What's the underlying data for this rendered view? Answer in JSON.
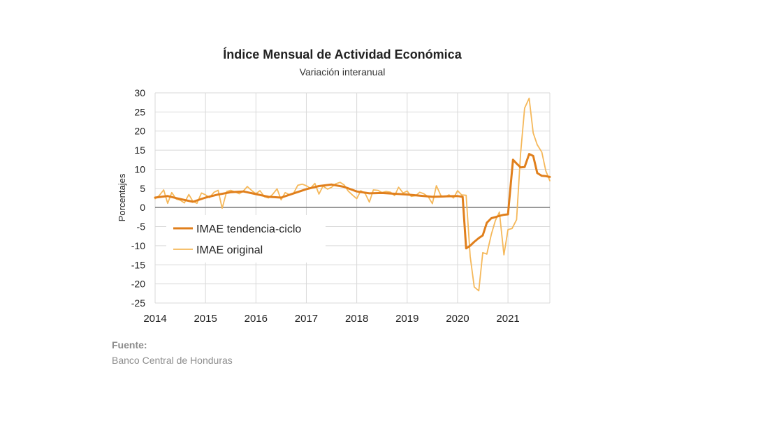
{
  "chart_data": {
    "type": "line",
    "title": "Índice Mensual de  Actividad Económica",
    "subtitle": "Variación interanual",
    "ylabel": "Porcentajes",
    "xlabel": "",
    "ylim": [
      -25,
      30
    ],
    "yticks": [
      30,
      25,
      20,
      15,
      10,
      5,
      0,
      -5,
      -10,
      -15,
      -20,
      -25
    ],
    "xlim": [
      2014,
      2021.83
    ],
    "xticks": [
      2014,
      2015,
      2016,
      2017,
      2018,
      2019,
      2020,
      2021
    ],
    "grid": true,
    "legend_position": "left",
    "colors": {
      "trend": "#e07f1c",
      "original": "#f5b85a",
      "zero": "#808080",
      "grid": "#d9d9d9"
    },
    "series": [
      {
        "name": "IMAE tendencia-ciclo",
        "x": [
          2014.0,
          2014.25,
          2014.5,
          2014.75,
          2015.0,
          2015.25,
          2015.5,
          2015.75,
          2016.0,
          2016.25,
          2016.5,
          2016.75,
          2017.0,
          2017.25,
          2017.5,
          2017.75,
          2018.0,
          2018.25,
          2018.5,
          2018.75,
          2019.0,
          2019.25,
          2019.5,
          2019.75,
          2020.0,
          2020.1,
          2020.17,
          2020.25,
          2020.33,
          2020.42,
          2020.5,
          2020.58,
          2020.67,
          2020.75,
          2020.83,
          2020.92,
          2021.0,
          2021.1,
          2021.17,
          2021.25,
          2021.33,
          2021.42,
          2021.5,
          2021.58,
          2021.67,
          2021.75,
          2021.83
        ],
        "values": [
          2.6,
          3.0,
          2.2,
          1.5,
          2.6,
          3.4,
          4.0,
          4.2,
          3.5,
          2.8,
          2.6,
          3.7,
          4.8,
          5.6,
          6.0,
          5.4,
          4.2,
          3.7,
          3.8,
          3.6,
          3.4,
          3.1,
          2.8,
          2.9,
          3.0,
          2.8,
          -10.7,
          -10.0,
          -9.0,
          -8.0,
          -7.3,
          -4.0,
          -2.8,
          -2.5,
          -2.2,
          -1.9,
          -1.8,
          12.5,
          11.5,
          10.5,
          10.6,
          14.0,
          13.5,
          9.0,
          8.3,
          8.2,
          8.0
        ]
      },
      {
        "name": "IMAE original",
        "x": [
          2014.0,
          2014.08,
          2014.17,
          2014.25,
          2014.33,
          2014.42,
          2014.5,
          2014.58,
          2014.67,
          2014.75,
          2014.83,
          2014.92,
          2015.0,
          2015.08,
          2015.17,
          2015.25,
          2015.33,
          2015.42,
          2015.5,
          2015.58,
          2015.67,
          2015.75,
          2015.83,
          2015.92,
          2016.0,
          2016.08,
          2016.17,
          2016.25,
          2016.33,
          2016.42,
          2016.5,
          2016.58,
          2016.67,
          2016.75,
          2016.83,
          2016.92,
          2017.0,
          2017.08,
          2017.17,
          2017.25,
          2017.33,
          2017.42,
          2017.5,
          2017.58,
          2017.67,
          2017.75,
          2017.83,
          2017.92,
          2018.0,
          2018.08,
          2018.17,
          2018.25,
          2018.33,
          2018.42,
          2018.5,
          2018.58,
          2018.67,
          2018.75,
          2018.83,
          2018.92,
          2019.0,
          2019.08,
          2019.17,
          2019.25,
          2019.33,
          2019.42,
          2019.5,
          2019.58,
          2019.67,
          2019.75,
          2019.83,
          2019.92,
          2020.0,
          2020.08,
          2020.17,
          2020.25,
          2020.33,
          2020.42,
          2020.5,
          2020.58,
          2020.67,
          2020.75,
          2020.83,
          2020.92,
          2021.0,
          2021.08,
          2021.17,
          2021.25,
          2021.33,
          2021.42,
          2021.5,
          2021.58,
          2021.67,
          2021.75,
          2021.83
        ],
        "values": [
          2.3,
          3.1,
          4.6,
          1.1,
          3.9,
          2.2,
          1.9,
          1.2,
          3.4,
          1.6,
          1.1,
          3.8,
          3.3,
          2.6,
          4.0,
          4.5,
          -0.2,
          4.2,
          4.5,
          4.1,
          3.6,
          4.3,
          5.5,
          4.4,
          3.6,
          4.4,
          2.8,
          2.5,
          3.4,
          4.9,
          2.0,
          3.9,
          3.3,
          3.8,
          5.8,
          6.1,
          5.7,
          5.0,
          6.3,
          3.5,
          5.6,
          4.8,
          5.3,
          6.2,
          6.6,
          5.9,
          4.3,
          3.2,
          2.3,
          4.4,
          3.6,
          1.4,
          4.6,
          4.5,
          3.9,
          4.2,
          4.0,
          3.1,
          5.3,
          3.8,
          4.3,
          2.9,
          3.1,
          4.0,
          3.6,
          2.8,
          1.0,
          5.7,
          3.1,
          2.8,
          3.3,
          2.5,
          4.4,
          3.3,
          3.2,
          -12.8,
          -20.8,
          -21.8,
          -11.8,
          -12.2,
          -7.0,
          -3.4,
          -1.2,
          -12.4,
          -5.8,
          -5.5,
          -3.2,
          14.0,
          26.0,
          28.6,
          19.5,
          16.4,
          14.5,
          9.6,
          7.0
        ]
      }
    ]
  },
  "source": {
    "label": "Fuente:",
    "text": "Banco Central de Honduras"
  }
}
